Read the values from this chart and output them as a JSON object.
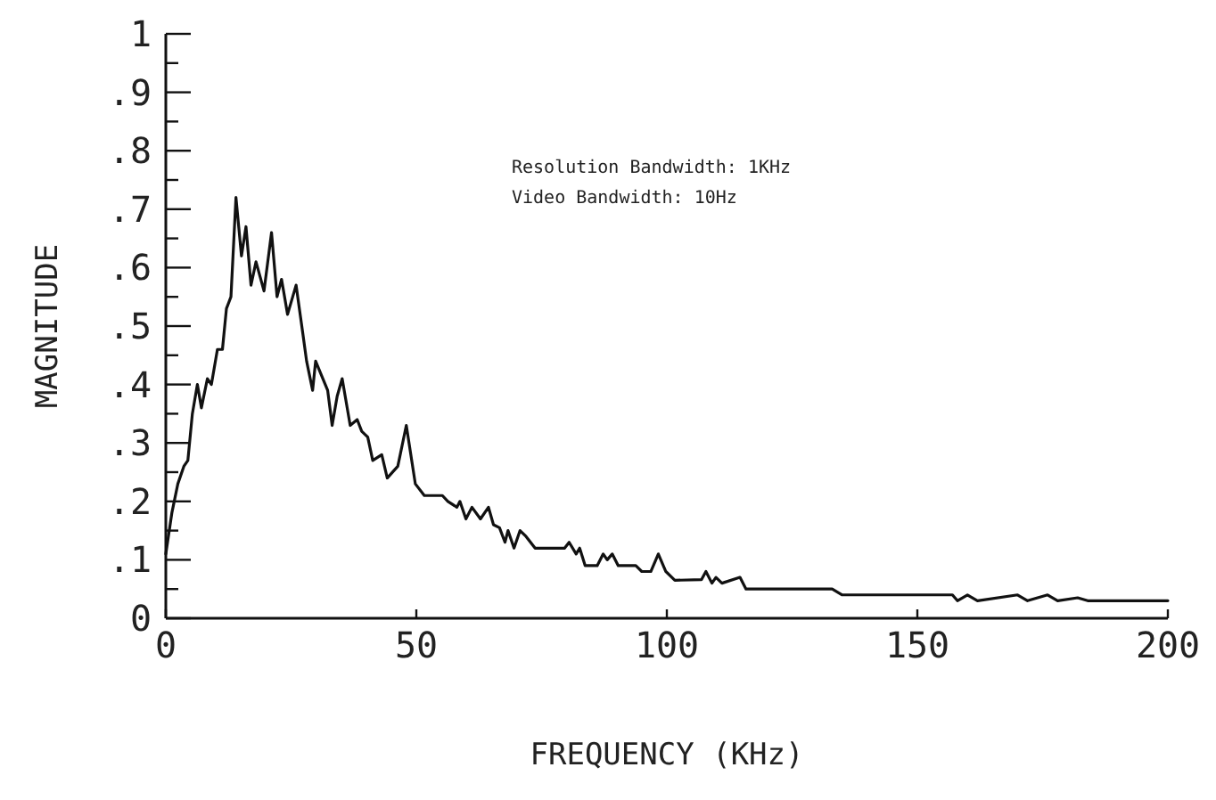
{
  "chart_data": {
    "type": "line",
    "xlabel": "FREQUENCY (KHz)",
    "ylabel": "MAGNITUDE",
    "annotations": [
      "Resolution Bandwidth: 1KHz",
      "Video Bandwidth: 10Hz"
    ],
    "xlim": [
      0,
      200
    ],
    "xticks": [
      0,
      50,
      100,
      150,
      200
    ],
    "ylim": [
      0,
      1
    ],
    "yticks": [
      {
        "value": 0,
        "label": "0"
      },
      {
        "value": 0.05,
        "label": null
      },
      {
        "value": 0.1,
        "label": ".1"
      },
      {
        "value": 0.15,
        "label": null
      },
      {
        "value": 0.2,
        "label": ".2"
      },
      {
        "value": 0.25,
        "label": null
      },
      {
        "value": 0.3,
        "label": ".3"
      },
      {
        "value": 0.35,
        "label": null
      },
      {
        "value": 0.4,
        "label": ".4"
      },
      {
        "value": 0.45,
        "label": null
      },
      {
        "value": 0.5,
        "label": ".5"
      },
      {
        "value": 0.55,
        "label": null
      },
      {
        "value": 0.6,
        "label": ".6"
      },
      {
        "value": 0.65,
        "label": null
      },
      {
        "value": 0.7,
        "label": ".7"
      },
      {
        "value": 0.75,
        "label": null
      },
      {
        "value": 0.8,
        "label": ".8"
      },
      {
        "value": 0.85,
        "label": null
      },
      {
        "value": 0.9,
        "label": ".9"
      },
      {
        "value": 0.95,
        "label": null
      },
      {
        "value": 1,
        "label": "1"
      }
    ],
    "grid": false,
    "marker": "none",
    "line_style": "solid",
    "series": [
      {
        "color": "#111111",
        "x": [
          0,
          1.2,
          2.4,
          3.6,
          4.4,
          5.3,
          6.3,
          7.1,
          8.3,
          9.1,
          10.3,
          11.3,
          12.1,
          13,
          14,
          15.1,
          16,
          17,
          18,
          19.6,
          21.1,
          22.2,
          23.1,
          24.3,
          26,
          27.3,
          28.1,
          29.3,
          29.9,
          32.3,
          33.2,
          34.2,
          35.2,
          36.8,
          38.2,
          39.1,
          40.3,
          41.3,
          43.1,
          44.2,
          46.3,
          48,
          49.8,
          51.6,
          53.4,
          55.2,
          56.3,
          58.1,
          58.7,
          59.9,
          61.1,
          62.8,
          64.4,
          65.4,
          66.6,
          67.7,
          68.3,
          69.5,
          70.7,
          71.9,
          73.7,
          79.6,
          80.5,
          81.9,
          82.6,
          83.7,
          86.1,
          87.3,
          88.1,
          89.1,
          90.3,
          93.8,
          95,
          96.8,
          98.3,
          99.8,
          101.6,
          106.9,
          107.8,
          109,
          109.8,
          111,
          114.6,
          115.8,
          124.7,
          133,
          135,
          157,
          158,
          160,
          162,
          170,
          172,
          176,
          178,
          182,
          184,
          200
        ],
        "values": [
          0.11,
          0.18,
          0.23,
          0.26,
          0.27,
          0.35,
          0.4,
          0.36,
          0.41,
          0.4,
          0.46,
          0.46,
          0.53,
          0.55,
          0.72,
          0.62,
          0.67,
          0.57,
          0.61,
          0.56,
          0.66,
          0.55,
          0.58,
          0.52,
          0.57,
          0.49,
          0.44,
          0.39,
          0.44,
          0.39,
          0.33,
          0.38,
          0.41,
          0.33,
          0.34,
          0.32,
          0.31,
          0.27,
          0.28,
          0.24,
          0.26,
          0.33,
          0.23,
          0.21,
          0.21,
          0.21,
          0.2,
          0.19,
          0.2,
          0.17,
          0.19,
          0.17,
          0.19,
          0.16,
          0.155,
          0.13,
          0.15,
          0.12,
          0.15,
          0.14,
          0.12,
          0.12,
          0.13,
          0.11,
          0.12,
          0.09,
          0.09,
          0.11,
          0.1,
          0.11,
          0.09,
          0.09,
          0.08,
          0.08,
          0.11,
          0.08,
          0.065,
          0.066,
          0.08,
          0.06,
          0.07,
          0.06,
          0.07,
          0.05,
          0.05,
          0.05,
          0.04,
          0.04,
          0.03,
          0.04,
          0.03,
          0.04,
          0.03,
          0.04,
          0.03,
          0.035,
          0.03,
          0.03
        ]
      }
    ]
  }
}
